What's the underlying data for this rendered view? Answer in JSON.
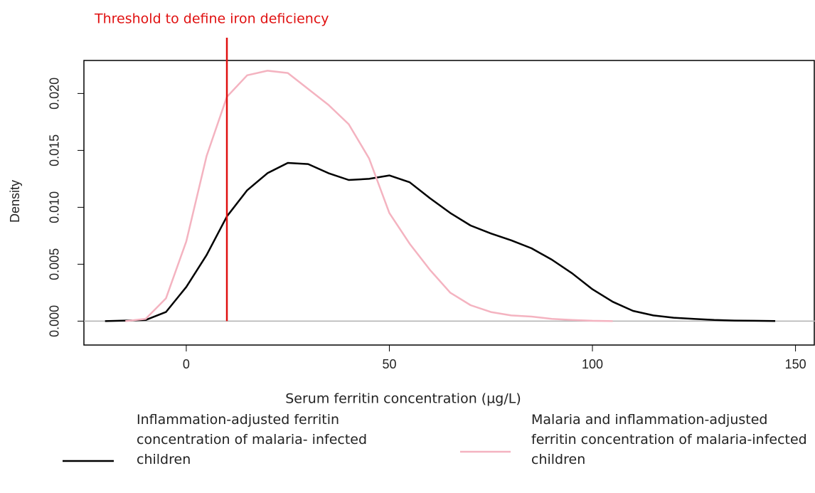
{
  "chart_data": {
    "type": "line",
    "annotation": "Threshold to define iron deficiency",
    "threshold": 10,
    "threshold_color": "#e01010",
    "xlabel": "Serum ferritin concentration (µg/L)",
    "ylabel": "Density",
    "x": [
      -20,
      -15,
      -10,
      -5,
      0,
      5,
      10,
      15,
      20,
      25,
      30,
      35,
      40,
      45,
      50,
      55,
      60,
      65,
      70,
      75,
      80,
      85,
      90,
      95,
      100,
      105,
      110,
      115,
      120,
      125,
      130,
      135,
      140,
      145,
      150
    ],
    "series": [
      {
        "name": "Inflammation-adjusted ferritin concentration of malaria- infected children",
        "color": "#000000",
        "values": [
          0,
          5e-05,
          0.0001,
          0.0008,
          0.003,
          0.0058,
          0.0092,
          0.0115,
          0.013,
          0.0139,
          0.0138,
          0.013,
          0.0124,
          0.0125,
          0.0128,
          0.0122,
          0.0108,
          0.0095,
          0.0084,
          0.0077,
          0.0071,
          0.0064,
          0.0054,
          0.0042,
          0.0028,
          0.0017,
          0.0009,
          0.0005,
          0.0003,
          0.0002,
          0.0001,
          5e-05,
          3e-05,
          1e-05,
          null
        ]
      },
      {
        "name": "Malaria and inflammation-adjusted ferritin concentration of malaria-infected children",
        "color": "#f4b3c0",
        "values": [
          null,
          0,
          0.0002,
          0.002,
          0.007,
          0.0145,
          0.0197,
          0.0216,
          0.022,
          0.0218,
          0.0204,
          0.019,
          0.0173,
          0.0143,
          0.0095,
          0.0068,
          0.0045,
          0.0025,
          0.0014,
          0.0008,
          0.0005,
          0.0004,
          0.0002,
          0.0001,
          3e-05,
          0,
          null,
          null,
          null,
          null,
          null,
          null,
          null,
          null,
          null
        ]
      }
    ],
    "xlim": [
      -25.2,
      154.8
    ],
    "xticks": [
      0,
      50,
      100,
      150
    ],
    "ylim": [
      -0.0021,
      0.0229
    ],
    "yticks": [
      {
        "value": 0,
        "label": "0.000"
      },
      {
        "value": 0.005,
        "label": "0.005"
      },
      {
        "value": 0.01,
        "label": "0.010"
      },
      {
        "value": 0.015,
        "label": "0.015"
      },
      {
        "value": 0.02,
        "label": "0.020"
      }
    ]
  }
}
